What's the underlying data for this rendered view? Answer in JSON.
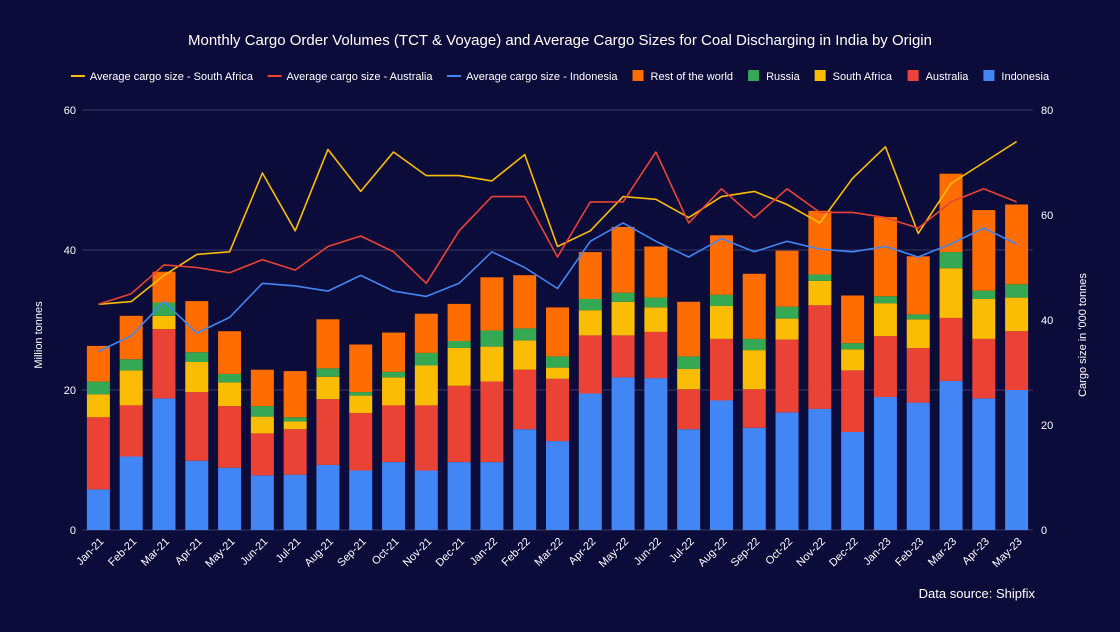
{
  "chart_data": {
    "type": "bar",
    "stacked": true,
    "title": "Monthly Cargo Order Volumes (TCT & Voyage) and Average Cargo Sizes for Coal Discharging in India by Origin",
    "ylabel": "Million tonnes",
    "y2label": "Cargo size in '000 tonnes",
    "ylim": [
      0,
      60
    ],
    "y2lim": [
      0,
      80
    ],
    "yticks": [
      "0",
      "20",
      "40",
      "60"
    ],
    "y2ticks": [
      "0",
      "20",
      "40",
      "60",
      "80"
    ],
    "source": "Data source: Shipfix",
    "categories": [
      "Jan-21",
      "Feb-21",
      "Mar-21",
      "Apr-21",
      "May-21",
      "Jun-21",
      "Jul-21",
      "Aug-21",
      "Sep-21",
      "Oct-21",
      "Nov-21",
      "Dec-21",
      "Jan-22",
      "Feb-22",
      "Mar-22",
      "Apr-22",
      "May-22",
      "Jun-22",
      "Jul-22",
      "Aug-22",
      "Sep-22",
      "Oct-22",
      "Nov-22",
      "Dec-22",
      "Jan-23",
      "Feb-23",
      "Mar-23",
      "Apr-23",
      "May-23"
    ],
    "series": [
      {
        "name": "Indonesia",
        "color": "#4285f4",
        "values": [
          5.8,
          10.5,
          18.8,
          9.9,
          8.9,
          7.8,
          7.9,
          9.3,
          8.5,
          9.7,
          8.5,
          9.7,
          9.7,
          14.4,
          12.7,
          19.5,
          21.8,
          21.7,
          14.4,
          18.5,
          14.6,
          16.8,
          17.3,
          14.0,
          19.0,
          18.2,
          21.3,
          18.8,
          20.0
        ]
      },
      {
        "name": "Australia",
        "color": "#ea4335",
        "values": [
          10.3,
          7.3,
          9.9,
          9.8,
          8.8,
          6.0,
          6.5,
          9.4,
          8.2,
          8.1,
          9.3,
          10.9,
          11.5,
          8.5,
          8.9,
          8.3,
          6.0,
          6.6,
          5.7,
          8.8,
          5.5,
          10.4,
          14.8,
          8.8,
          8.7,
          7.8,
          9.0,
          8.5,
          8.4
        ]
      },
      {
        "name": "South Africa",
        "color": "#fbbc04",
        "values": [
          3.3,
          5.0,
          1.9,
          4.3,
          3.4,
          2.4,
          1.1,
          3.2,
          2.5,
          4.0,
          5.7,
          5.4,
          5.0,
          4.2,
          1.6,
          3.6,
          4.8,
          3.5,
          2.9,
          4.7,
          5.6,
          3.0,
          3.5,
          3.0,
          4.7,
          4.1,
          7.1,
          5.7,
          4.8
        ]
      },
      {
        "name": "Russia",
        "color": "#34a853",
        "values": [
          1.8,
          1.6,
          1.9,
          1.4,
          1.2,
          1.5,
          0.6,
          1.2,
          0.5,
          0.8,
          1.8,
          1.0,
          2.3,
          1.7,
          1.6,
          1.6,
          1.3,
          1.4,
          1.8,
          1.6,
          1.6,
          1.7,
          0.9,
          0.9,
          1.0,
          0.7,
          2.3,
          1.2,
          1.9
        ]
      },
      {
        "name": "Rest of the world",
        "color": "#ff6d01",
        "values": [
          5.1,
          6.2,
          4.4,
          7.3,
          6.1,
          5.2,
          6.6,
          7.0,
          6.8,
          5.6,
          5.6,
          5.3,
          7.6,
          7.6,
          7.0,
          6.7,
          9.4,
          7.3,
          7.8,
          8.5,
          9.3,
          8.0,
          9.1,
          6.8,
          11.3,
          8.3,
          11.2,
          11.5,
          11.4
        ]
      }
    ],
    "lines": [
      {
        "name": "Average cargo size - South Africa",
        "color": "#fbbc04",
        "axis": "right",
        "values": [
          43,
          43.5,
          48.5,
          52.5,
          53,
          68,
          57,
          72.5,
          64.5,
          72,
          67.5,
          67.5,
          66.5,
          71.5,
          54,
          57,
          63.5,
          63,
          59.5,
          63.5,
          64.5,
          62,
          58.5,
          67,
          73,
          56.5,
          66,
          70,
          74
        ]
      },
      {
        "name": "Average cargo size - Australia",
        "color": "#ea4335",
        "axis": "right",
        "values": [
          43,
          45,
          50.5,
          50,
          49,
          51.5,
          49.5,
          54,
          56,
          53,
          47,
          57,
          63.5,
          63.5,
          52,
          62.5,
          62.5,
          72,
          58.5,
          65,
          59.5,
          65,
          60.5,
          60.5,
          59.5,
          57.5,
          62.5,
          65,
          62.5
        ]
      },
      {
        "name": "Average cargo size - Indonesia",
        "color": "#4285f4",
        "axis": "right",
        "values": [
          34,
          37,
          43.5,
          37.5,
          40.5,
          47,
          46.5,
          45.5,
          48.5,
          45.5,
          44.5,
          47,
          53,
          50,
          46,
          55,
          58.5,
          55,
          52,
          55.5,
          53,
          55,
          53.5,
          53,
          54,
          52,
          54.5,
          57.5,
          54.5
        ]
      }
    ],
    "legend_order": [
      {
        "name": "Average cargo size - South Africa",
        "kind": "line",
        "color": "#fbbc04"
      },
      {
        "name": "Average cargo size - Australia",
        "kind": "line",
        "color": "#ea4335"
      },
      {
        "name": "Average cargo size - Indonesia",
        "kind": "line",
        "color": "#4285f4"
      },
      {
        "name": "Rest of the world",
        "kind": "box",
        "color": "#ff6d01"
      },
      {
        "name": "Russia",
        "kind": "box",
        "color": "#34a853"
      },
      {
        "name": "South Africa",
        "kind": "box",
        "color": "#fbbc04"
      },
      {
        "name": "Australia",
        "kind": "box",
        "color": "#ea4335"
      },
      {
        "name": "Indonesia",
        "kind": "box",
        "color": "#4285f4"
      }
    ]
  }
}
